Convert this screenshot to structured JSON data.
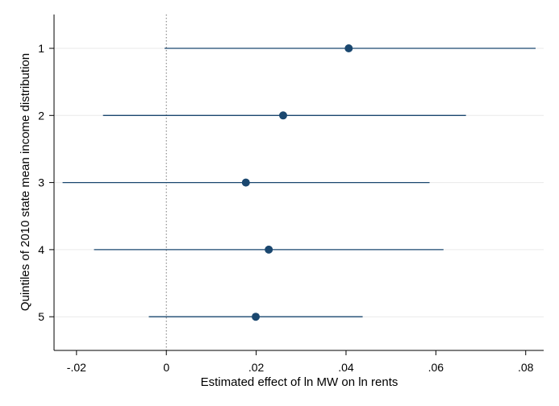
{
  "chart_data": {
    "type": "scatter",
    "subtype": "coefficient-plot-horizontal-ci",
    "title": "",
    "xlabel": "Estimated effect of ln MW on ln rents",
    "ylabel": "Quintiles of 2010 state mean income distribution",
    "xlim": [
      -0.025,
      0.084
    ],
    "x_ticks": [
      -0.02,
      0,
      0.02,
      0.04,
      0.06,
      0.08
    ],
    "x_tick_labels": [
      "-.02",
      "0",
      ".02",
      ".04",
      ".06",
      ".08"
    ],
    "y_categories": [
      "1",
      "2",
      "3",
      "4",
      "5"
    ],
    "reference_line": 0,
    "grid": "horizontal",
    "colors": {
      "series": "#1a476f",
      "grid": "#eaeaea",
      "ref_line": "#777777",
      "axis": "#000000"
    },
    "points": [
      {
        "category": "1",
        "estimate": 0.0406,
        "ci_low": -0.0004,
        "ci_high": 0.0822
      },
      {
        "category": "2",
        "estimate": 0.026,
        "ci_low": -0.0141,
        "ci_high": 0.0667
      },
      {
        "category": "3",
        "estimate": 0.0177,
        "ci_low": -0.0231,
        "ci_high": 0.0586
      },
      {
        "category": "4",
        "estimate": 0.0228,
        "ci_low": -0.0161,
        "ci_high": 0.0617
      },
      {
        "category": "5",
        "estimate": 0.0199,
        "ci_low": -0.0039,
        "ci_high": 0.0437
      }
    ]
  }
}
